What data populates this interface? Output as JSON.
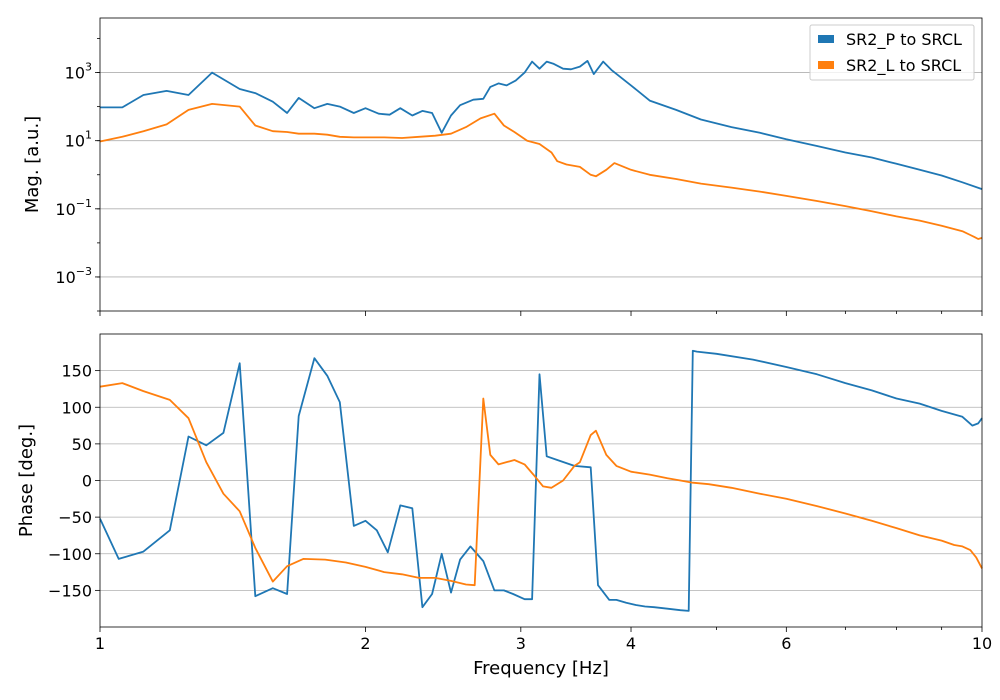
{
  "chart_data": [
    {
      "type": "line",
      "panel": "magnitude",
      "ylabel": "Mag. [a.u.]",
      "xlabel": "",
      "xscale": "log",
      "yscale": "log",
      "xlim": [
        1,
        10
      ],
      "ylim": [
        0.0001,
        40000
      ],
      "yticks": [
        0.001,
        0.1,
        10,
        1000
      ],
      "ytick_labels": [
        {
          "base": "10",
          "exp": "−3"
        },
        {
          "base": "10",
          "exp": "−1"
        },
        {
          "base": "10",
          "exp": "1"
        },
        {
          "base": "10",
          "exp": "3"
        }
      ],
      "grid": true,
      "legend": {
        "placement": "top-right"
      },
      "series": [
        {
          "name": "SR2_P to SRCL",
          "color": "#1f77b4",
          "x": [
            1.0,
            1.06,
            1.12,
            1.19,
            1.26,
            1.34,
            1.44,
            1.5,
            1.57,
            1.63,
            1.68,
            1.75,
            1.81,
            1.87,
            1.94,
            2.0,
            2.07,
            2.13,
            2.19,
            2.26,
            2.32,
            2.38,
            2.44,
            2.5,
            2.56,
            2.65,
            2.72,
            2.77,
            2.83,
            2.89,
            2.96,
            3.03,
            3.09,
            3.15,
            3.21,
            3.27,
            3.35,
            3.42,
            3.5,
            3.57,
            3.63,
            3.72,
            3.8,
            4.0,
            4.2,
            4.5,
            4.8,
            5.2,
            5.6,
            6.0,
            6.5,
            7.0,
            7.5,
            8.0,
            8.5,
            9.0,
            9.5,
            10.0
          ],
          "y": [
            95,
            95,
            220,
            290,
            220,
            1000,
            330,
            250,
            140,
            65,
            180,
            90,
            120,
            100,
            65,
            90,
            62,
            58,
            90,
            55,
            75,
            65,
            17,
            55,
            110,
            160,
            170,
            380,
            480,
            420,
            580,
            1000,
            2100,
            1300,
            2100,
            1800,
            1300,
            1250,
            1500,
            2200,
            900,
            2100,
            1200,
            420,
            150,
            80,
            42,
            25,
            17,
            11,
            7,
            4.5,
            3.2,
            2.1,
            1.4,
            0.95,
            0.6,
            0.38
          ]
        },
        {
          "name": "SR2_L to SRCL",
          "color": "#ff7f0e",
          "x": [
            1.0,
            1.06,
            1.12,
            1.19,
            1.26,
            1.34,
            1.44,
            1.5,
            1.57,
            1.63,
            1.68,
            1.75,
            1.81,
            1.87,
            1.94,
            2.0,
            2.1,
            2.2,
            2.3,
            2.4,
            2.5,
            2.6,
            2.7,
            2.8,
            2.87,
            2.95,
            3.05,
            3.15,
            3.25,
            3.3,
            3.38,
            3.5,
            3.6,
            3.65,
            3.75,
            3.83,
            4.0,
            4.2,
            4.5,
            4.8,
            5.2,
            5.6,
            6.0,
            6.5,
            7.0,
            7.5,
            8.0,
            8.5,
            9.0,
            9.5,
            9.7,
            9.8,
            9.9,
            10.0
          ],
          "y": [
            9.5,
            13,
            19,
            30,
            80,
            120,
            100,
            28,
            19,
            18,
            16,
            16,
            15,
            13,
            12.5,
            12.5,
            12.5,
            12,
            13,
            14,
            16,
            25,
            45,
            62,
            28,
            18,
            10,
            8,
            4.5,
            2.5,
            2.0,
            1.7,
            1.0,
            0.9,
            1.4,
            2.2,
            1.4,
            1.0,
            0.75,
            0.55,
            0.42,
            0.32,
            0.24,
            0.17,
            0.12,
            0.085,
            0.06,
            0.045,
            0.032,
            0.022,
            0.017,
            0.015,
            0.013,
            0.014
          ]
        }
      ]
    },
    {
      "type": "line",
      "panel": "phase",
      "ylabel": "Phase [deg.]",
      "xlabel": "Frequency [Hz]",
      "xscale": "log",
      "xlim": [
        1,
        10
      ],
      "ylim": [
        -200,
        200
      ],
      "xticks": [
        1,
        2,
        3,
        4,
        6,
        10
      ],
      "yticks": [
        -150,
        -100,
        -50,
        0,
        50,
        100,
        150
      ],
      "grid": true,
      "series": [
        {
          "name": "SR2_P to SRCL",
          "color": "#1f77b4",
          "x": [
            1.0,
            1.05,
            1.12,
            1.2,
            1.26,
            1.32,
            1.38,
            1.44,
            1.5,
            1.57,
            1.63,
            1.68,
            1.75,
            1.81,
            1.87,
            1.94,
            2.0,
            2.06,
            2.12,
            2.19,
            2.26,
            2.32,
            2.38,
            2.44,
            2.5,
            2.56,
            2.63,
            2.72,
            2.8,
            2.87,
            2.94,
            3.03,
            3.09,
            3.15,
            3.21,
            3.3,
            3.45,
            3.6,
            3.67,
            3.78,
            3.85,
            3.95,
            4.05,
            4.15,
            4.25,
            4.4,
            4.55,
            4.65,
            4.7,
            4.75,
            5.0,
            5.5,
            6.0,
            6.5,
            7.0,
            7.5,
            8.0,
            8.5,
            9.0,
            9.5,
            9.75,
            9.9,
            10.0
          ],
          "y": [
            -52,
            -107,
            -97,
            -68,
            60,
            48,
            65,
            160,
            -158,
            -147,
            -155,
            88,
            167,
            143,
            107,
            -62,
            -55,
            -68,
            -98,
            -34,
            -38,
            -173,
            -155,
            -100,
            -153,
            -108,
            -90,
            -110,
            -150,
            -150,
            -155,
            -162,
            -162,
            145,
            33,
            28,
            20,
            18,
            -143,
            -163,
            -163,
            -167,
            -170,
            -172,
            -173,
            -175,
            -177,
            -178,
            177,
            176,
            173,
            165,
            155,
            145,
            133,
            123,
            112,
            105,
            95,
            87,
            75,
            78,
            85
          ]
        },
        {
          "name": "SR2_L to SRCL",
          "color": "#ff7f0e",
          "x": [
            1.0,
            1.06,
            1.12,
            1.2,
            1.26,
            1.32,
            1.38,
            1.44,
            1.5,
            1.57,
            1.63,
            1.7,
            1.8,
            1.9,
            2.0,
            2.1,
            2.2,
            2.3,
            2.4,
            2.5,
            2.6,
            2.66,
            2.72,
            2.77,
            2.83,
            2.95,
            3.03,
            3.1,
            3.18,
            3.25,
            3.35,
            3.45,
            3.5,
            3.6,
            3.65,
            3.75,
            3.85,
            4.0,
            4.2,
            4.4,
            4.55,
            4.7,
            4.9,
            5.2,
            5.6,
            6.0,
            6.5,
            7.0,
            7.5,
            8.0,
            8.5,
            9.0,
            9.3,
            9.5,
            9.7,
            9.85,
            10.0
          ],
          "y": [
            128,
            133,
            122,
            110,
            85,
            25,
            -18,
            -42,
            -92,
            -138,
            -117,
            -107,
            -108,
            -112,
            -118,
            -125,
            -128,
            -133,
            -133,
            -137,
            -142,
            -143,
            112,
            35,
            22,
            28,
            22,
            8,
            -8,
            -10,
            0,
            20,
            25,
            62,
            68,
            35,
            20,
            12,
            8,
            3,
            0,
            -3,
            -5,
            -10,
            -18,
            -25,
            -35,
            -45,
            -55,
            -65,
            -75,
            -82,
            -88,
            -90,
            -95,
            -105,
            -120
          ]
        }
      ]
    }
  ]
}
